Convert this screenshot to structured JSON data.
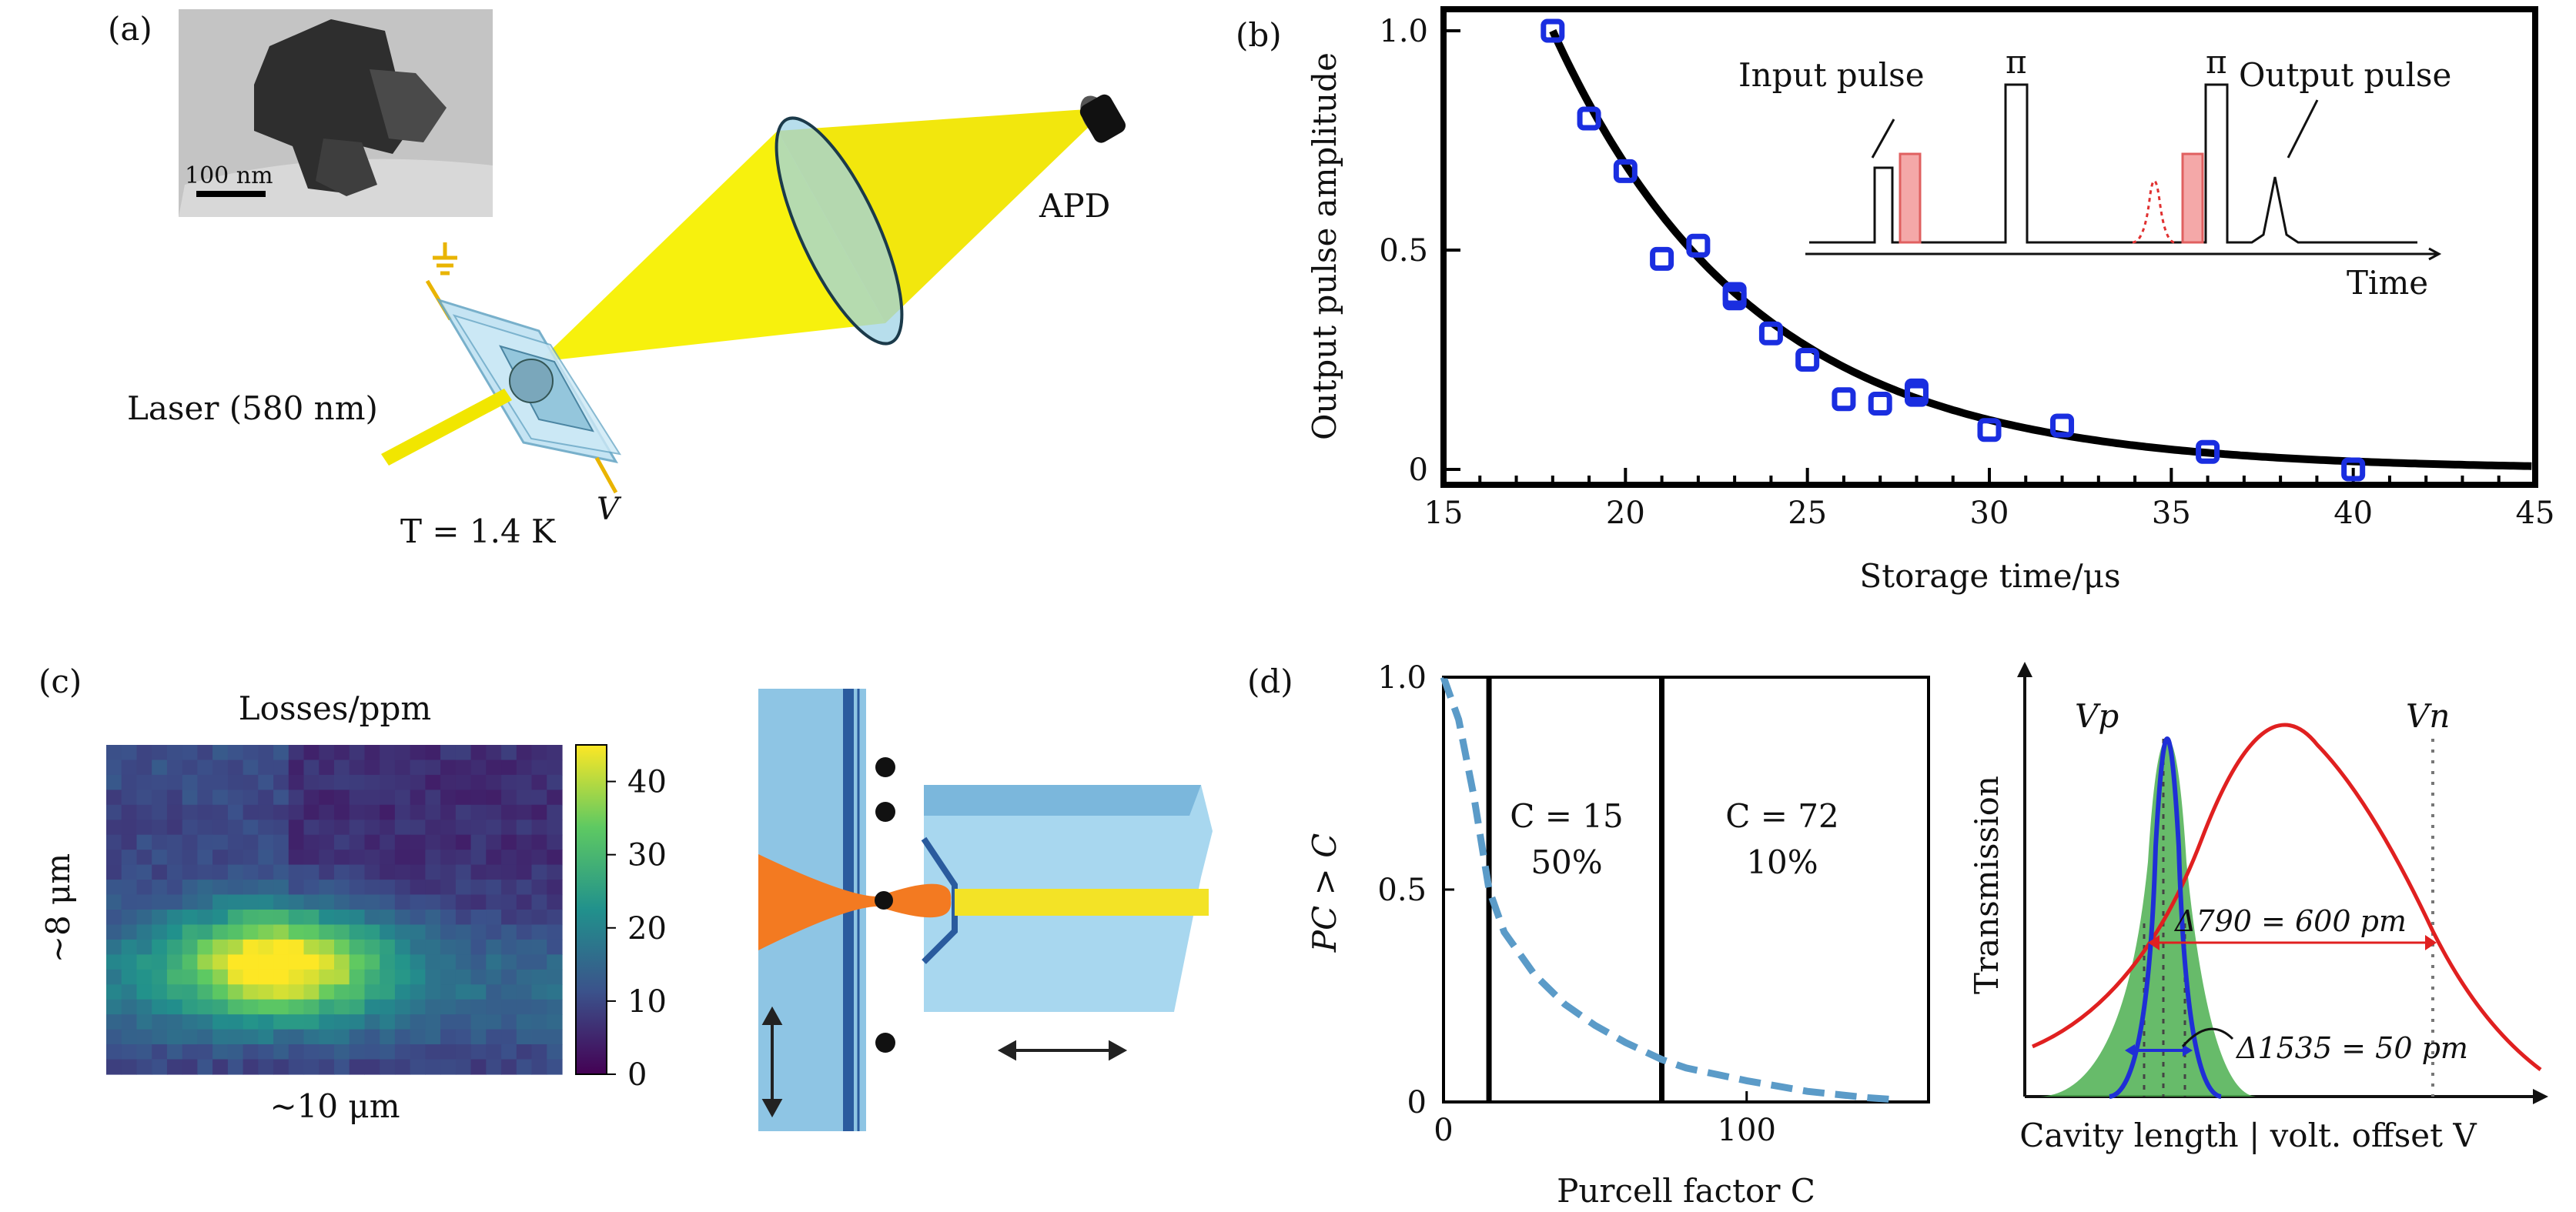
{
  "panels": {
    "a": {
      "label": "(a)",
      "scale_bar": "100 nm",
      "laser": "Laser (580 nm)",
      "detector": "APD",
      "temperature": "T = 1.4 K",
      "voltage": "V"
    },
    "b": {
      "label": "(b)",
      "inset": {
        "input_pulse": "Input pulse",
        "output_pulse": "Output pulse",
        "pi_label": "π",
        "time_label": "Time"
      }
    },
    "c": {
      "label": "(c)",
      "map_title": "Losses/ppm",
      "y_extent": "~8 μm",
      "x_extent": "~10 μm",
      "colorbar_ticks": [
        "0",
        "10",
        "20",
        "30",
        "40"
      ]
    },
    "d": {
      "label": "(d)",
      "region1_c": "C = 15",
      "region1_p": "50%",
      "region2_c": "C = 72",
      "region2_p": "10%",
      "vp": "Vp",
      "vn": "Vn",
      "delta790": "Δ790 = 600 pm",
      "delta1535": "Δ1535 = 50 pm",
      "trans_ylabel": "Transmission",
      "trans_xlabel": "Cavity length | volt. offset V"
    }
  },
  "chart_data": [
    {
      "type": "scatter",
      "title": "",
      "xlabel": "Storage time/μs",
      "ylabel": "Output pulse amplitude",
      "xlim": [
        15,
        45
      ],
      "ylim": [
        0,
        1.0
      ],
      "xticks": [
        15,
        20,
        25,
        30,
        35,
        40,
        45
      ],
      "yticks": [
        0,
        0.5,
        1.0
      ],
      "ytick_labels": [
        "0",
        "0.5",
        "1.0"
      ],
      "series": [
        {
          "name": "measured",
          "x": [
            18,
            19,
            20,
            21,
            22,
            23,
            23,
            24,
            25,
            26,
            27,
            28,
            28,
            30,
            32,
            36,
            40
          ],
          "y": [
            1.0,
            0.8,
            0.68,
            0.48,
            0.51,
            0.4,
            0.39,
            0.31,
            0.25,
            0.16,
            0.15,
            0.17,
            0.18,
            0.09,
            0.1,
            0.04,
            0.0
          ]
        },
        {
          "name": "fit",
          "decay_model": "exp",
          "x0": 18,
          "amplitude": 1.0,
          "tau_us": 5.5
        }
      ]
    },
    {
      "type": "line",
      "xlabel": "Purcell factor C",
      "ylabel": "PC > C",
      "xlim": [
        0,
        160
      ],
      "ylim": [
        0,
        1.0
      ],
      "xticks": [
        0,
        100
      ],
      "yticks": [
        0,
        0.5,
        1.0
      ],
      "ytick_labels": [
        "0",
        "0.5",
        "1.0"
      ],
      "series": [
        {
          "name": "P(C_i > C)",
          "x": [
            0,
            5,
            10,
            15,
            20,
            30,
            40,
            50,
            60,
            72,
            80,
            100,
            120,
            140,
            150
          ],
          "y": [
            1.0,
            0.9,
            0.72,
            0.5,
            0.4,
            0.3,
            0.23,
            0.18,
            0.14,
            0.1,
            0.08,
            0.05,
            0.025,
            0.01,
            0.005
          ]
        }
      ],
      "vlines": [
        15,
        72
      ]
    }
  ]
}
